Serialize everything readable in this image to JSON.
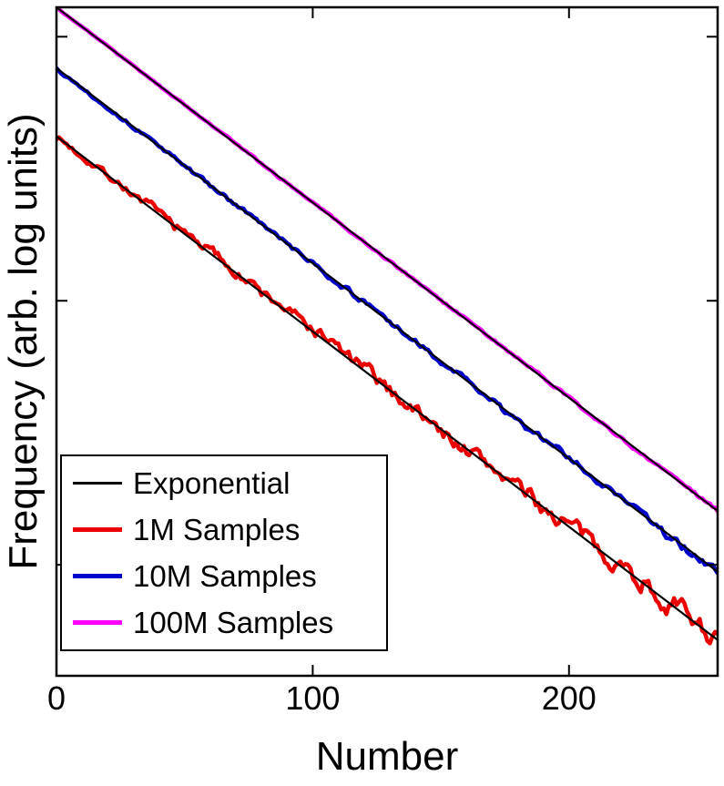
{
  "figure": {
    "background": "#ffffff",
    "axis_color": "#000000"
  },
  "axes": {
    "xlabel": "Number",
    "ylabel": "Frequency (arb. log units)",
    "x_tick_labels": [
      "0",
      "100",
      "200"
    ]
  },
  "legend": {
    "position": "lower-left",
    "entries": [
      {
        "label": "Exponential",
        "color": "#000000",
        "thickness": "thin"
      },
      {
        "label": "1M Samples",
        "color": "#eb0000",
        "thickness": "thick"
      },
      {
        "label": "10M Samples",
        "color": "#0000cd",
        "thickness": "thick"
      },
      {
        "label": "100M Samples",
        "color": "#ff00ff",
        "thickness": "thick"
      }
    ]
  },
  "chart_data": {
    "type": "line",
    "title": "",
    "xlabel": "Number",
    "ylabel": "Frequency (arb. log units)",
    "xlim": [
      0,
      258
    ],
    "x_ticks": [
      0,
      100,
      200
    ],
    "y_scale": "log",
    "ylim_log_units": [
      0,
      10
    ],
    "y_ticks_log_units": [
      1.66,
      5.61,
      9.56
    ],
    "y_tick_labels": [],
    "grid": false,
    "legend_position": "lower-left",
    "series": [
      {
        "name": "Exponential",
        "color": "#000000",
        "role": "fit-line",
        "intercepts_log_units": [
          8.07,
          9.09,
          10.0
        ],
        "slope_log_units_per_x": 0.0292
      },
      {
        "name": "1M Samples",
        "color": "#eb0000",
        "role": "sampled-histogram",
        "intercept_log_units": 8.07,
        "slope_log_units_per_x": 0.0292,
        "noise_amplitude_log_units": 0.09,
        "seed": 7
      },
      {
        "name": "10M Samples",
        "color": "#0000cd",
        "role": "sampled-histogram",
        "intercept_log_units": 9.09,
        "slope_log_units_per_x": 0.0292,
        "noise_amplitude_log_units": 0.035,
        "seed": 13
      },
      {
        "name": "100M Samples",
        "color": "#ff00ff",
        "role": "sampled-histogram",
        "intercept_log_units": 10.0,
        "slope_log_units_per_x": 0.0292,
        "noise_amplitude_log_units": 0.015,
        "seed": 99
      }
    ]
  }
}
